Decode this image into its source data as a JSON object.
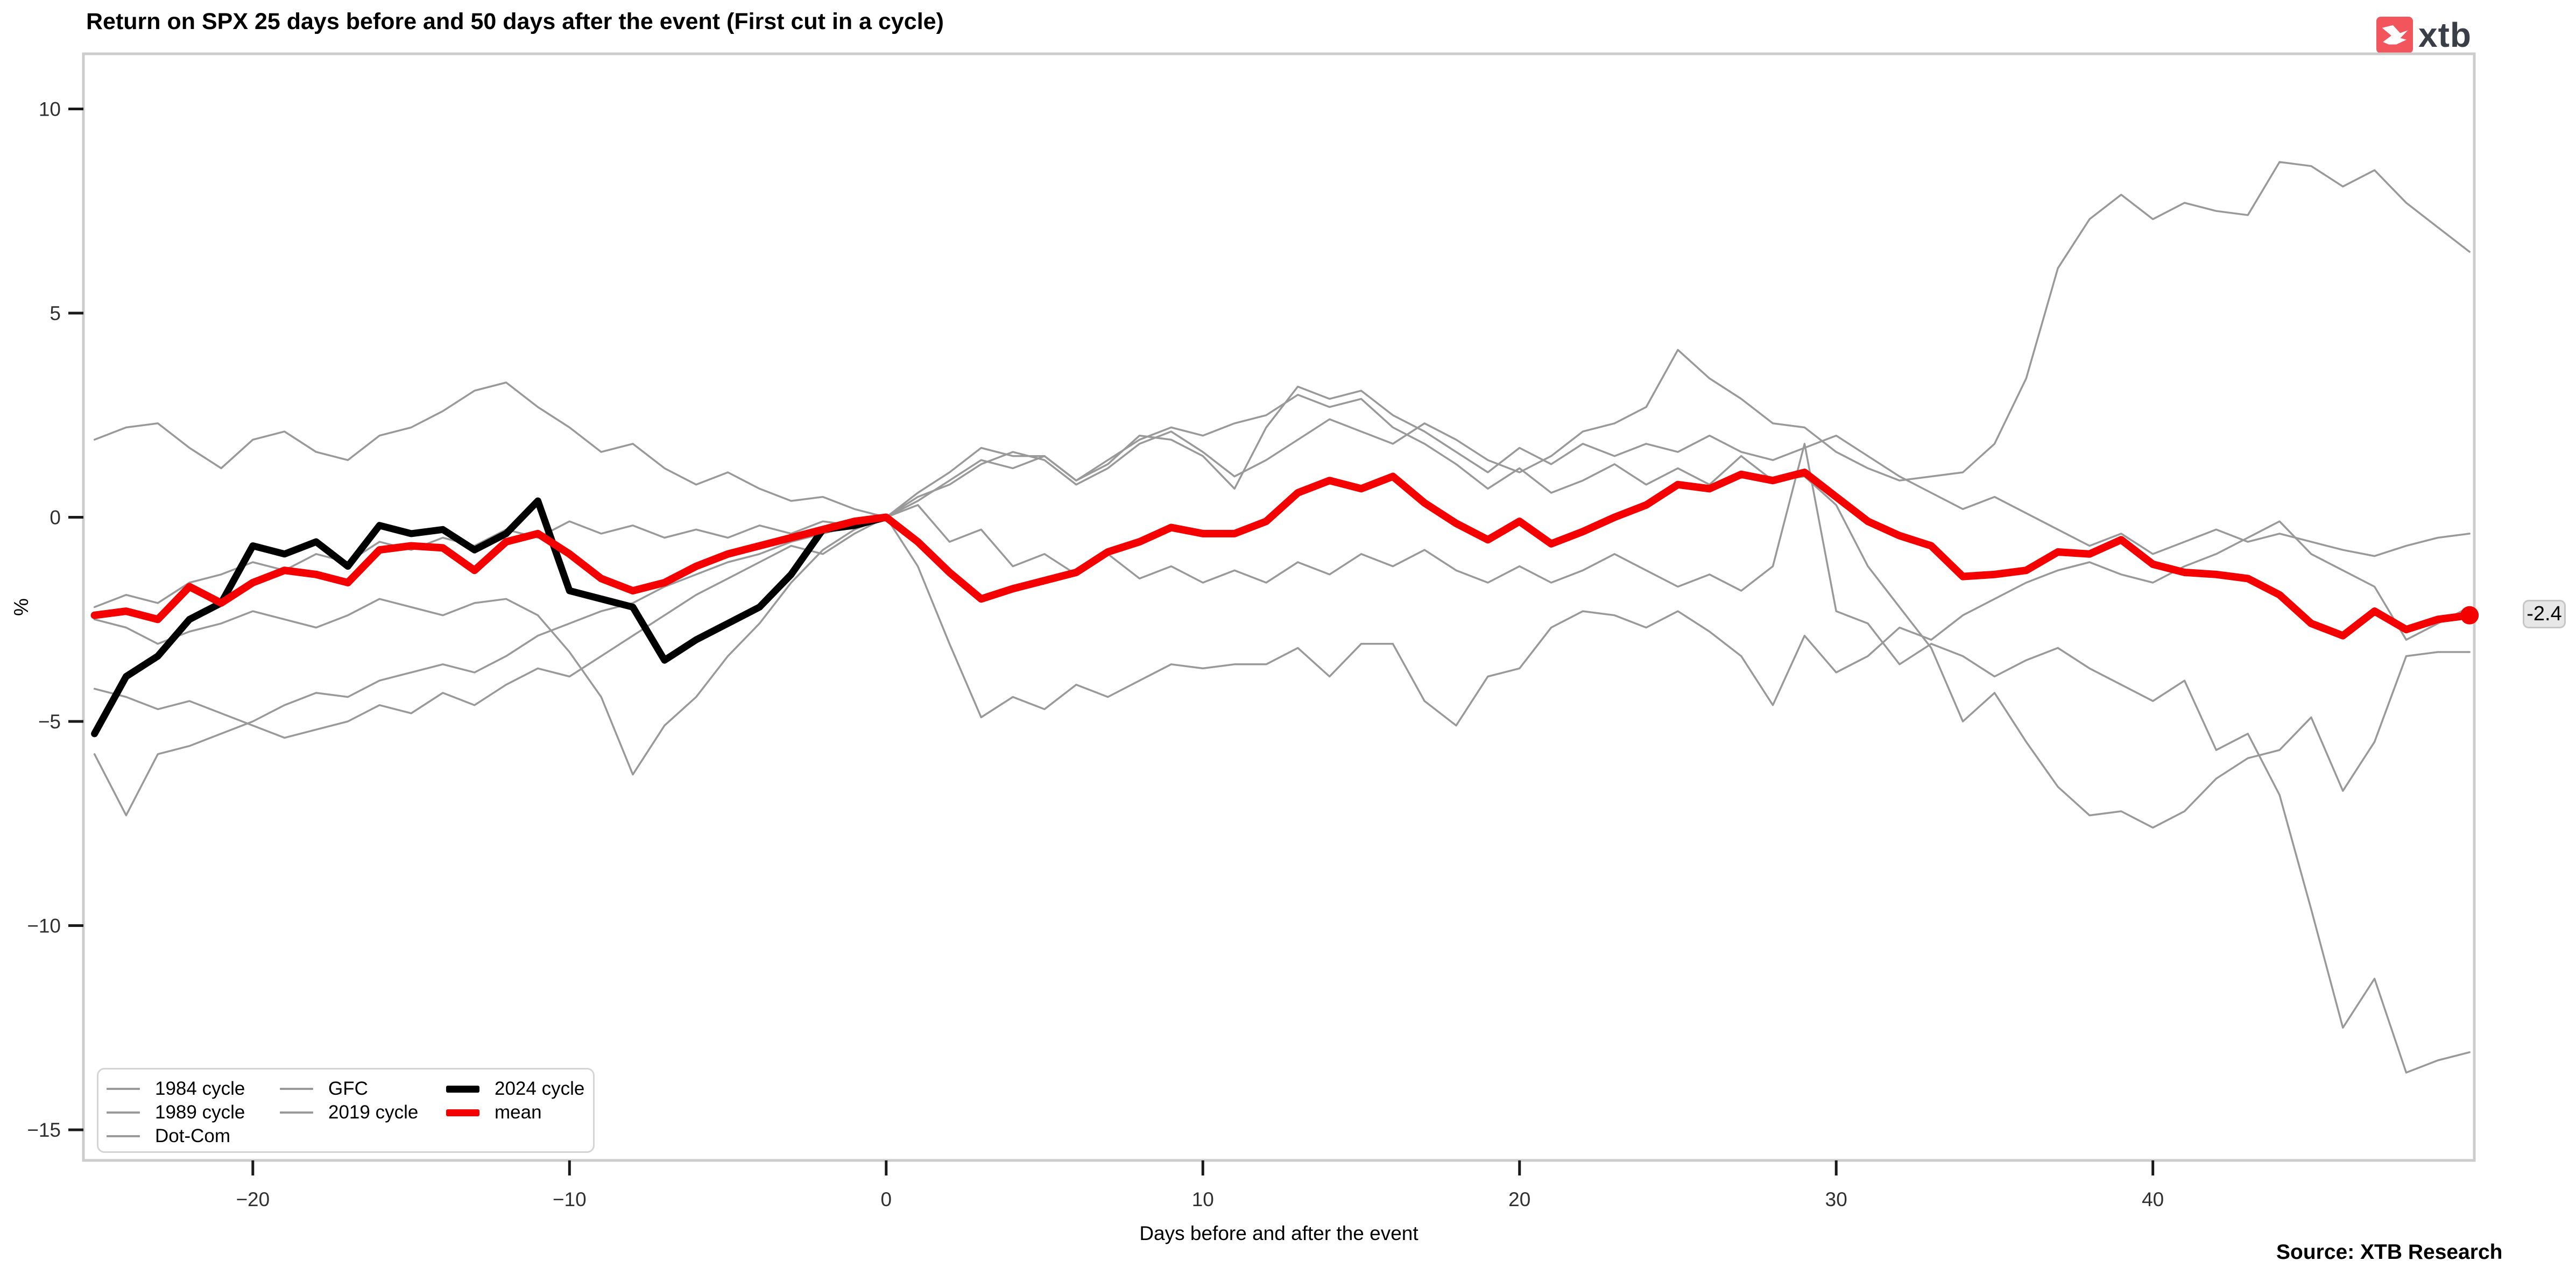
{
  "header": {
    "title": "Return on SPX 25 days before and 50 days after the event (First cut in a cycle)"
  },
  "logo": {
    "text": "xtb",
    "square_color": "#F2555C",
    "text_color": "#3A3E46"
  },
  "footer": {
    "source": "Source: XTB Research"
  },
  "annotations": {
    "end_label": "-2.4"
  },
  "colors": {
    "gray_line": "#999999",
    "black_line": "#000000",
    "red_line": "#F40000",
    "panel_border": "#CCCCCC",
    "tick": "#1A1A1A",
    "tick_text": "#303030"
  },
  "legend": {
    "items": [
      {
        "label": "1984 cycle",
        "color": "#999999",
        "thickness": 4,
        "col": 0
      },
      {
        "label": "1989 cycle",
        "color": "#999999",
        "thickness": 4,
        "col": 0
      },
      {
        "label": "Dot-Com",
        "color": "#999999",
        "thickness": 4,
        "col": 0
      },
      {
        "label": "GFC",
        "color": "#999999",
        "thickness": 4,
        "col": 1
      },
      {
        "label": "2019 cycle",
        "color": "#999999",
        "thickness": 4,
        "col": 1
      },
      {
        "label": "2024 cycle",
        "color": "#000000",
        "thickness": 13,
        "col": 2
      },
      {
        "label": "mean",
        "color": "#F40000",
        "thickness": 13,
        "col": 2
      }
    ]
  },
  "chart_data": {
    "type": "line",
    "title": "Return on SPX 25 days before and 50 days after the event (First cut in a cycle)",
    "xlabel": "Days before and after the event",
    "ylabel": "%",
    "x_min": -25,
    "x_max": 50,
    "xlim": [
      -25.35,
      50.15
    ],
    "ylim": [
      -15.75,
      11.35
    ],
    "xticks": [
      -20,
      -10,
      0,
      10,
      20,
      30,
      40
    ],
    "yticks": [
      10,
      5,
      0,
      -5,
      -10,
      -15
    ],
    "grid": false,
    "legend_position": "bottom-left",
    "end_annotation": {
      "series": "mean",
      "x": 50,
      "y": -2.4,
      "label": "-2.4"
    },
    "days": [
      -25,
      -24,
      -23,
      -22,
      -21,
      -20,
      -19,
      -18,
      -17,
      -16,
      -15,
      -14,
      -13,
      -12,
      -11,
      -10,
      -9,
      -8,
      -7,
      -6,
      -5,
      -4,
      -3,
      -2,
      -1,
      0,
      1,
      2,
      3,
      4,
      5,
      6,
      7,
      8,
      9,
      10,
      11,
      12,
      13,
      14,
      15,
      16,
      17,
      18,
      19,
      20,
      21,
      22,
      23,
      24,
      25,
      26,
      27,
      28,
      29,
      30,
      31,
      32,
      33,
      34,
      35,
      36,
      37,
      38,
      39,
      40,
      41,
      42,
      43,
      44,
      45,
      46,
      47,
      48,
      49,
      50
    ],
    "series": [
      {
        "name": "1984 cycle",
        "color": "#999999",
        "width": 3.5,
        "values": [
          1.9,
          2.2,
          2.3,
          1.7,
          1.2,
          1.9,
          2.1,
          1.6,
          1.4,
          2.0,
          2.2,
          2.6,
          3.1,
          3.3,
          2.7,
          2.2,
          1.6,
          1.8,
          1.2,
          0.8,
          1.1,
          0.7,
          0.4,
          0.5,
          0.2,
          0.0,
          0.5,
          0.8,
          1.3,
          1.6,
          1.4,
          0.8,
          1.2,
          1.8,
          2.1,
          1.6,
          1.0,
          1.4,
          1.9,
          2.4,
          2.1,
          1.8,
          2.3,
          1.9,
          1.4,
          1.1,
          1.5,
          2.1,
          2.3,
          2.7,
          4.1,
          3.4,
          2.9,
          2.3,
          2.2,
          1.6,
          1.2,
          0.9,
          1.0,
          1.1,
          1.8,
          3.4,
          6.1,
          7.3,
          7.9,
          7.3,
          7.7,
          7.5,
          7.4,
          8.7,
          8.6,
          8.1,
          8.5,
          7.7,
          7.1,
          6.5
        ]
      },
      {
        "name": "1989 cycle",
        "color": "#999999",
        "width": 3.5,
        "values": [
          -2.2,
          -1.9,
          -2.1,
          -1.6,
          -1.4,
          -1.1,
          -1.3,
          -0.9,
          -1.1,
          -0.6,
          -0.8,
          -0.5,
          -0.7,
          -0.3,
          -0.5,
          -0.1,
          -0.4,
          -0.2,
          -0.5,
          -0.3,
          -0.5,
          -0.2,
          -0.4,
          -0.1,
          -0.2,
          0.0,
          0.6,
          1.1,
          1.7,
          1.5,
          1.5,
          0.9,
          1.3,
          2.0,
          1.9,
          1.5,
          0.7,
          2.2,
          3.2,
          2.9,
          3.1,
          2.5,
          2.1,
          1.6,
          1.1,
          1.7,
          1.3,
          1.8,
          1.5,
          1.8,
          1.6,
          2.0,
          1.6,
          1.4,
          1.7,
          2.0,
          1.5,
          1.0,
          0.6,
          0.2,
          0.5,
          0.1,
          -0.3,
          -0.7,
          -0.4,
          -0.9,
          -0.6,
          -0.3,
          -0.6,
          -0.4,
          -0.6,
          -0.8,
          -0.95,
          -0.7,
          -0.5,
          -0.4
        ]
      },
      {
        "name": "Dot-Com",
        "color": "#999999",
        "width": 3.5,
        "values": [
          -4.2,
          -4.4,
          -4.7,
          -4.5,
          -4.8,
          -5.1,
          -5.4,
          -5.2,
          -5.0,
          -4.6,
          -4.8,
          -4.3,
          -4.6,
          -4.1,
          -3.7,
          -3.9,
          -3.4,
          -2.9,
          -2.4,
          -1.9,
          -1.5,
          -1.1,
          -0.7,
          -0.9,
          -0.4,
          0.0,
          0.3,
          -0.6,
          -0.3,
          -1.2,
          -0.9,
          -1.4,
          -0.9,
          -1.5,
          -1.2,
          -1.6,
          -1.3,
          -1.6,
          -1.1,
          -1.4,
          -0.9,
          -1.2,
          -0.8,
          -1.3,
          -1.6,
          -1.2,
          -1.6,
          -1.3,
          -0.9,
          -1.3,
          -1.7,
          -1.4,
          -1.8,
          -1.2,
          1.8,
          -2.3,
          -2.6,
          -3.6,
          -3.1,
          -3.4,
          -3.9,
          -3.5,
          -3.2,
          -3.7,
          -4.1,
          -4.5,
          -4.0,
          -5.7,
          -5.3,
          -6.8,
          -9.6,
          -12.5,
          -11.3,
          -13.6,
          -13.3,
          -13.1
        ]
      },
      {
        "name": "GFC",
        "color": "#999999",
        "width": 3.5,
        "values": [
          -2.5,
          -2.7,
          -3.1,
          -2.8,
          -2.6,
          -2.3,
          -2.5,
          -2.7,
          -2.4,
          -2.0,
          -2.2,
          -2.4,
          -2.1,
          -2.0,
          -2.4,
          -3.3,
          -4.4,
          -6.3,
          -5.1,
          -4.4,
          -3.4,
          -2.6,
          -1.6,
          -0.8,
          -0.3,
          0.0,
          0.4,
          0.9,
          1.4,
          1.2,
          1.5,
          0.9,
          1.4,
          1.9,
          2.2,
          2.0,
          2.3,
          2.5,
          3.0,
          2.7,
          2.9,
          2.2,
          1.8,
          1.3,
          0.7,
          1.2,
          0.6,
          0.9,
          1.3,
          0.8,
          1.2,
          0.8,
          1.5,
          0.9,
          1.0,
          0.3,
          -1.2,
          -2.2,
          -3.2,
          -5.0,
          -4.3,
          -5.5,
          -6.6,
          -7.3,
          -7.2,
          -7.6,
          -7.2,
          -6.4,
          -5.9,
          -5.7,
          -4.9,
          -6.7,
          -5.5,
          -3.4,
          -3.3,
          -3.3
        ]
      },
      {
        "name": "2019 cycle",
        "color": "#999999",
        "width": 3.5,
        "values": [
          -5.8,
          -7.3,
          -5.8,
          -5.6,
          -5.3,
          -5.0,
          -4.6,
          -4.3,
          -4.4,
          -4.0,
          -3.8,
          -3.6,
          -3.8,
          -3.4,
          -2.9,
          -2.6,
          -2.3,
          -2.1,
          -1.7,
          -1.4,
          -1.1,
          -0.9,
          -0.6,
          -0.4,
          -0.2,
          0.0,
          -1.2,
          -3.1,
          -4.9,
          -4.4,
          -4.7,
          -4.1,
          -4.4,
          -4.0,
          -3.6,
          -3.7,
          -3.6,
          -3.6,
          -3.2,
          -3.9,
          -3.1,
          -3.1,
          -4.5,
          -5.1,
          -3.9,
          -3.7,
          -2.7,
          -2.3,
          -2.4,
          -2.7,
          -2.3,
          -2.8,
          -3.4,
          -4.6,
          -2.9,
          -3.8,
          -3.4,
          -2.7,
          -3.0,
          -2.4,
          -2.0,
          -1.6,
          -1.3,
          -1.1,
          -1.4,
          -1.6,
          -1.2,
          -0.9,
          -0.5,
          -0.1,
          -0.9,
          -1.3,
          -1.7,
          -3.0,
          -2.6,
          -2.2
        ]
      },
      {
        "name": "2024 cycle",
        "color": "#000000",
        "width": 13,
        "values": [
          -5.3,
          -3.9,
          -3.4,
          -2.5,
          -2.1,
          -0.7,
          -0.9,
          -0.6,
          -1.2,
          -0.2,
          -0.4,
          -0.3,
          -0.8,
          -0.4,
          0.4,
          -1.8,
          -2.0,
          -2.2,
          -3.5,
          -3.0,
          -2.6,
          -2.2,
          -1.4,
          -0.3,
          -0.2,
          0.0,
          null,
          null,
          null,
          null,
          null,
          null,
          null,
          null,
          null,
          null,
          null,
          null,
          null,
          null,
          null,
          null,
          null,
          null,
          null,
          null,
          null,
          null,
          null,
          null,
          null,
          null,
          null,
          null,
          null,
          null,
          null,
          null,
          null,
          null,
          null,
          null,
          null,
          null,
          null,
          null,
          null,
          null,
          null,
          null,
          null,
          null,
          null,
          null,
          null,
          null
        ]
      },
      {
        "name": "mean",
        "color": "#F40000",
        "width": 14,
        "end_dot": true,
        "values": [
          -2.4,
          -2.3,
          -2.5,
          -1.7,
          -2.1,
          -1.6,
          -1.3,
          -1.4,
          -1.6,
          -0.8,
          -0.7,
          -0.75,
          -1.3,
          -0.6,
          -0.4,
          -0.9,
          -1.5,
          -1.8,
          -1.6,
          -1.2,
          -0.9,
          -0.7,
          -0.5,
          -0.3,
          -0.1,
          0.0,
          -0.6,
          -1.35,
          -2.0,
          -1.75,
          -1.55,
          -1.35,
          -0.85,
          -0.6,
          -0.25,
          -0.4,
          -0.4,
          -0.1,
          0.6,
          0.9,
          0.7,
          1.0,
          0.35,
          -0.15,
          -0.55,
          -0.1,
          -0.65,
          -0.35,
          0.0,
          0.3,
          0.8,
          0.7,
          1.05,
          0.9,
          1.1,
          0.5,
          -0.1,
          -0.45,
          -0.7,
          -1.45,
          -1.4,
          -1.3,
          -0.85,
          -0.9,
          -0.55,
          -1.15,
          -1.35,
          -1.4,
          -1.5,
          -1.9,
          -2.6,
          -2.9,
          -2.3,
          -2.75,
          -2.5,
          -2.4
        ]
      }
    ]
  }
}
